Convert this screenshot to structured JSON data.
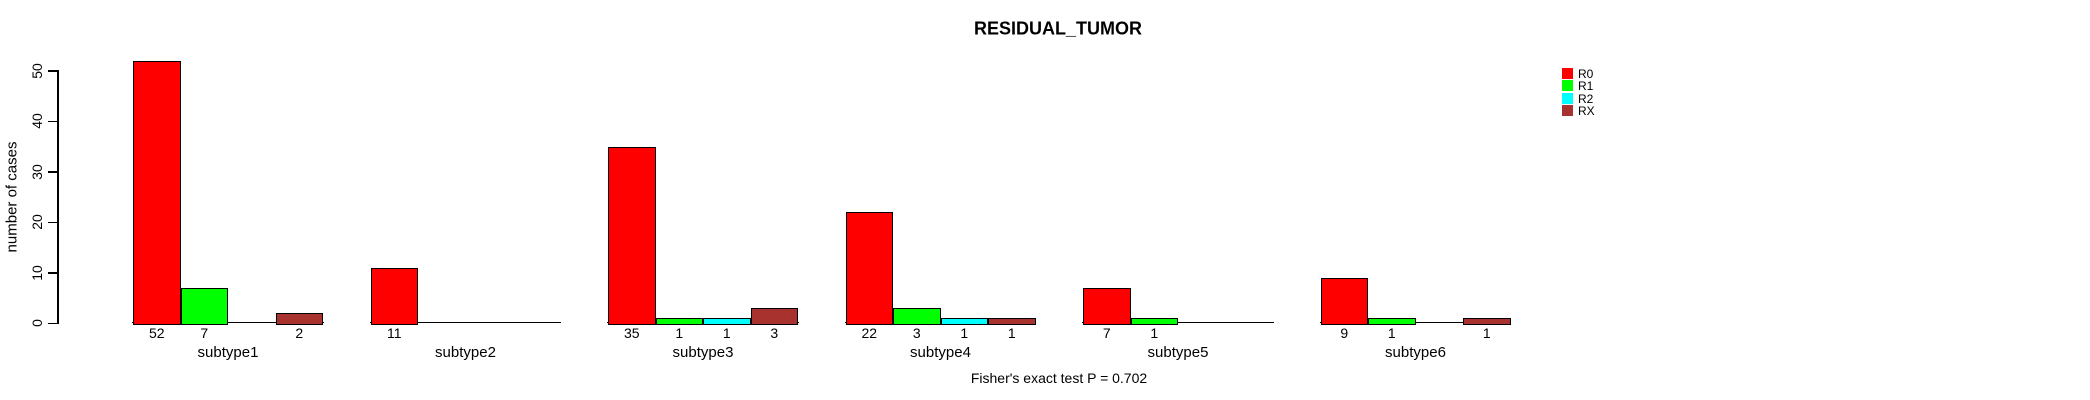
{
  "title": "RESIDUAL_TUMOR",
  "chart_data": {
    "type": "bar",
    "grouped": true,
    "title": "RESIDUAL_TUMOR",
    "xlabel": "",
    "ylabel": "number of cases",
    "annotation": "Fisher's exact test P = 0.702",
    "categories": [
      "subtype1",
      "subtype2",
      "subtype3",
      "subtype4",
      "subtype5",
      "subtype6"
    ],
    "series": [
      {
        "name": "R0",
        "color": "#FF0000",
        "values": [
          52,
          11,
          35,
          22,
          7,
          9
        ]
      },
      {
        "name": "R1",
        "color": "#00FF00",
        "values": [
          7,
          0,
          1,
          3,
          1,
          1
        ]
      },
      {
        "name": "R2",
        "color": "#00FFFF",
        "values": [
          0,
          0,
          1,
          1,
          0,
          0
        ]
      },
      {
        "name": "RX",
        "color": "#A8322D",
        "values": [
          2,
          0,
          3,
          1,
          0,
          1
        ]
      }
    ],
    "bar_value_labels_shown": true,
    "zero_values_unlabeled": true,
    "yticks": [
      0,
      10,
      20,
      30,
      40,
      50
    ],
    "ylim": [
      0,
      52
    ],
    "grid": false,
    "legend_position": "right",
    "legend": [
      {
        "label": "R0",
        "color": "#FF0000"
      },
      {
        "label": "R1",
        "color": "#00FF00"
      },
      {
        "label": "R2",
        "color": "#00FFFF"
      },
      {
        "label": "RX",
        "color": "#A8322D"
      }
    ],
    "axis_color": "#000000",
    "background_color": "#FFFFFF"
  }
}
